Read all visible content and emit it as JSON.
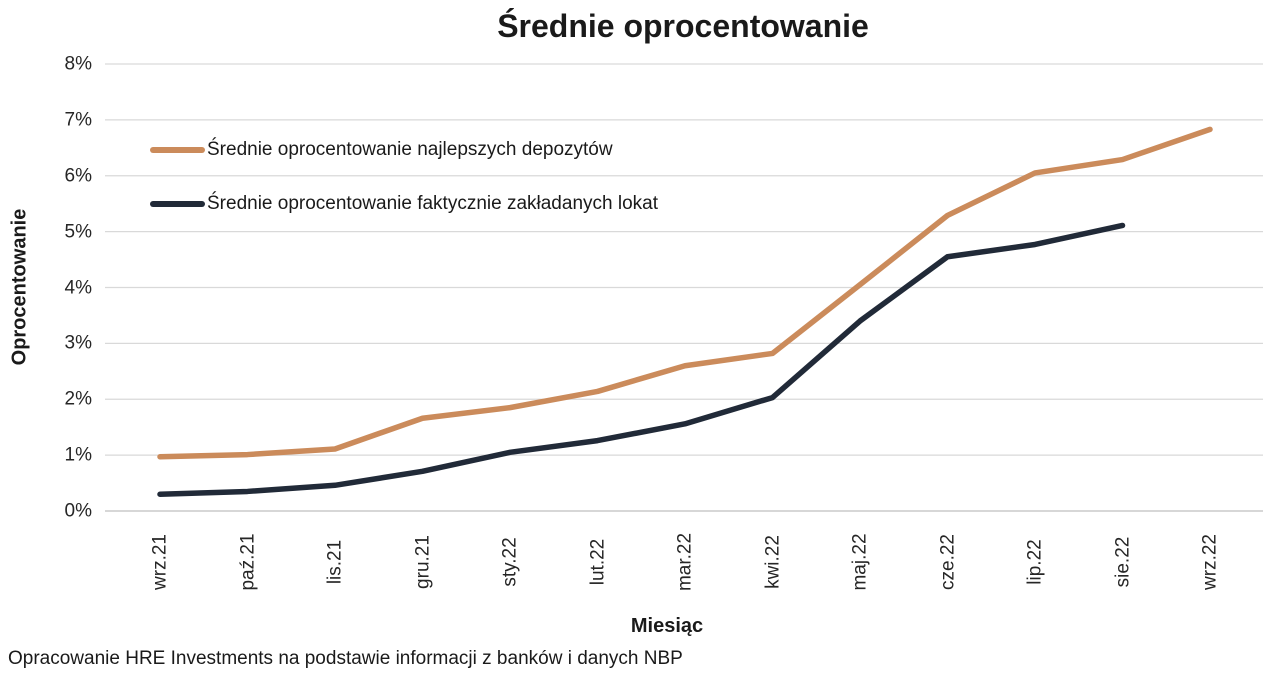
{
  "title": "Średnie oprocentowanie",
  "x_axis_title": "Miesiąc",
  "y_axis_title": "Oprocentowanie",
  "source_note": "Opracowanie HRE Investments na podstawie informacji z banków i danych NBP",
  "colors": {
    "best_deposits_line": "#CB8B5B",
    "actual_deposits_line": "#212A38",
    "gridline": "#D9D9D9",
    "axis_line": "#BFBFBF",
    "text": "#1a1a1a"
  },
  "chart_data": {
    "type": "line",
    "title": "Średnie oprocentowanie",
    "xlabel": "Miesiąc",
    "ylabel": "Oprocentowanie",
    "categories": [
      "wrz.21",
      "paź.21",
      "lis.21",
      "gru.21",
      "sty.22",
      "lut.22",
      "mar.22",
      "kwi.22",
      "maj.22",
      "cze.22",
      "lip.22",
      "sie.22",
      "wrz.22"
    ],
    "series": [
      {
        "name": "Średnie oprocentowanie najlepszych depozytów",
        "color": "#CB8B5B",
        "values": [
          0.97,
          1.01,
          1.11,
          1.66,
          1.85,
          2.14,
          2.6,
          2.82,
          4.05,
          5.29,
          6.05,
          6.29,
          6.83
        ]
      },
      {
        "name": "Średnie oprocentowanie faktycznie zakładanych lokat",
        "color": "#212A38",
        "values": [
          0.3,
          0.35,
          0.46,
          0.71,
          1.05,
          1.26,
          1.56,
          2.03,
          3.4,
          4.55,
          4.77,
          5.11,
          null
        ]
      }
    ],
    "ylim": [
      0,
      8
    ],
    "y_ticks": [
      "0%",
      "1%",
      "2%",
      "3%",
      "4%",
      "5%",
      "6%",
      "7%",
      "8%"
    ],
    "grid": true,
    "legend_position": "inside-top-left"
  }
}
